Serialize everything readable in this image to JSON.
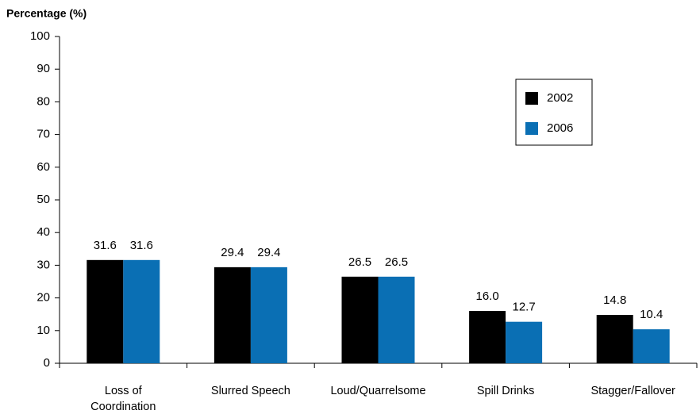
{
  "chart_data": {
    "type": "bar",
    "y_axis_label": "Percentage (%)",
    "categories": [
      "Loss of Coordination",
      "Slurred Speech",
      "Loud/Quarrelsome",
      "Spill Drinks",
      "Stagger/Fallover"
    ],
    "series": [
      {
        "name": "2002",
        "color": "#000000",
        "values": [
          31.6,
          29.4,
          26.5,
          16,
          14.8
        ],
        "value_labels": [
          "31.6",
          "29.4",
          "26.5",
          "16.0",
          "14.8"
        ]
      },
      {
        "name": "2006",
        "color": "#0a6fb4",
        "values": [
          31.6,
          29.4,
          26.5,
          12.7,
          10.4
        ],
        "value_labels": [
          "31.6",
          "29.4",
          "26.5",
          "12.7",
          "10.4"
        ]
      }
    ],
    "ylim": [
      0,
      100
    ],
    "yticks": [
      0,
      10,
      20,
      30,
      40,
      50,
      60,
      70,
      80,
      90,
      100
    ],
    "legend": "upper right"
  }
}
